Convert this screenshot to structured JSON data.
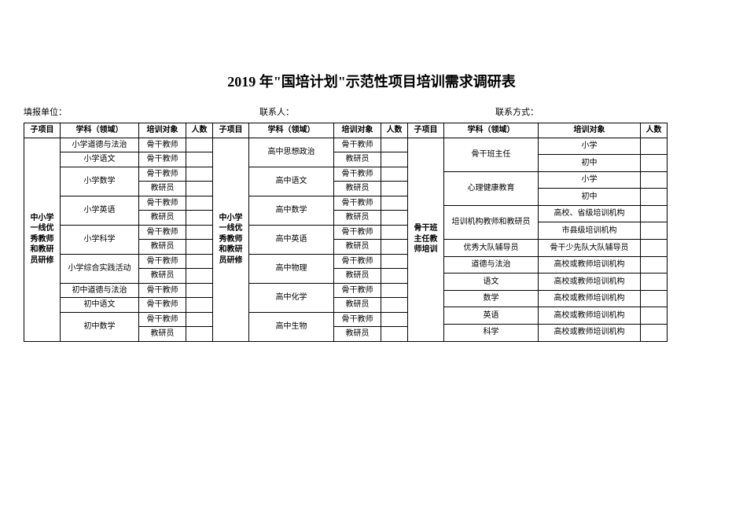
{
  "title": "2019 年\"国培计划\"示范性项目培训需求调研表",
  "meta": {
    "label1": "填报单位：",
    "label2": "联系人：",
    "label3": "联系方式："
  },
  "headers": {
    "sub": "子项目",
    "subject": "学科（领域）",
    "target": "培训对象",
    "num": "人数"
  },
  "table1": {
    "sub_label": "中小学一线优秀教师和教研员研修",
    "rows": [
      {
        "subject": "小学道德与法治",
        "target": "骨干教师",
        "subj_rows": 1
      },
      {
        "subject": "小学语文",
        "target": "骨干教师",
        "subj_rows": 1
      },
      {
        "subject": "小学数学",
        "target": "骨干教师",
        "subj_rows": 2
      },
      {
        "subject": "",
        "target": "教研员",
        "subj_rows": 0
      },
      {
        "subject": "小学英语",
        "target": "骨干教师",
        "subj_rows": 2
      },
      {
        "subject": "",
        "target": "教研员",
        "subj_rows": 0
      },
      {
        "subject": "小学科学",
        "target": "骨干教师",
        "subj_rows": 2
      },
      {
        "subject": "",
        "target": "教研员",
        "subj_rows": 0
      },
      {
        "subject": "小学综合实践活动",
        "target": "骨干教师",
        "subj_rows": 2
      },
      {
        "subject": "",
        "target": "教研员",
        "subj_rows": 0
      },
      {
        "subject": "初中道德与法治",
        "target": "骨干教师",
        "subj_rows": 1
      },
      {
        "subject": "初中语文",
        "target": "骨干教师",
        "subj_rows": 1
      },
      {
        "subject": "初中数学",
        "target": "骨干教师",
        "subj_rows": 2
      },
      {
        "subject": "",
        "target": "教研员",
        "subj_rows": 0
      }
    ]
  },
  "table2": {
    "sub_label": "中小学一线优秀教师和教研员研修",
    "rows": [
      {
        "subject": "高中思想政治",
        "target": "骨干教师",
        "subj_rows": 2
      },
      {
        "subject": "",
        "target": "教研员",
        "subj_rows": 0
      },
      {
        "subject": "高中语文",
        "target": "骨干教师",
        "subj_rows": 2
      },
      {
        "subject": "",
        "target": "教研员",
        "subj_rows": 0
      },
      {
        "subject": "高中数学",
        "target": "骨干教师",
        "subj_rows": 2
      },
      {
        "subject": "",
        "target": "教研员",
        "subj_rows": 0
      },
      {
        "subject": "高中英语",
        "target": "骨干教师",
        "subj_rows": 2
      },
      {
        "subject": "",
        "target": "教研员",
        "subj_rows": 0
      },
      {
        "subject": "高中物理",
        "target": "骨干教师",
        "subj_rows": 2
      },
      {
        "subject": "",
        "target": "教研员",
        "subj_rows": 0
      },
      {
        "subject": "高中化学",
        "target": "骨干教师",
        "subj_rows": 2
      },
      {
        "subject": "",
        "target": "教研员",
        "subj_rows": 0
      },
      {
        "subject": "高中生物",
        "target": "骨干教师",
        "subj_rows": 2
      },
      {
        "subject": "",
        "target": "教研员",
        "subj_rows": 0
      }
    ]
  },
  "table3": {
    "sub_label": "骨干班主任教师培训",
    "rows": [
      {
        "subject": "骨干班主任",
        "target": "小学",
        "subj_rows": 2
      },
      {
        "subject": "",
        "target": "初中",
        "subj_rows": 0
      },
      {
        "subject": "心理健康教育",
        "target": "小学",
        "subj_rows": 2
      },
      {
        "subject": "",
        "target": "初中",
        "subj_rows": 0
      },
      {
        "subject": "培训机构教师和教研员",
        "target": "高校、省级培训机构",
        "subj_rows": 2
      },
      {
        "subject": "",
        "target": "市县级培训机构",
        "subj_rows": 0
      },
      {
        "subject": "优秀大队辅导员",
        "target": "骨干少先队大队辅导员",
        "subj_rows": 1
      },
      {
        "subject": "道德与法治",
        "target": "高校或教师培训机构",
        "subj_rows": 1
      },
      {
        "subject": "语文",
        "target": "高校或教师培训机构",
        "subj_rows": 1
      },
      {
        "subject": "数学",
        "target": "高校或教师培训机构",
        "subj_rows": 1
      },
      {
        "subject": "英语",
        "target": "高校或教师培训机构",
        "subj_rows": 1
      },
      {
        "subject": "科学",
        "target": "高校或教师培训机构",
        "subj_rows": 1
      }
    ]
  },
  "style": {
    "background_color": "#ffffff",
    "border_color": "#000000",
    "title_fontsize": 18,
    "body_fontsize": 11,
    "cell_fontsize": 10,
    "font_family": "SimSun"
  }
}
